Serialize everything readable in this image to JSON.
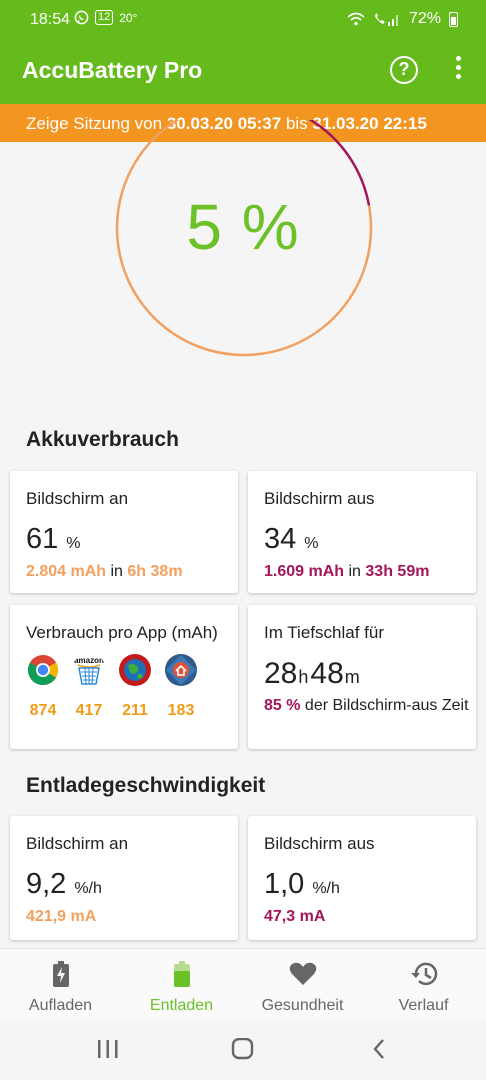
{
  "status": {
    "time": "18:54",
    "notif_badge": "12",
    "temperature": "20°",
    "battery_pct": "72%"
  },
  "appbar": {
    "title": "AccuBattery Pro",
    "help_icon": "help-circle-icon",
    "menu_icon": "more-vert-icon"
  },
  "session": {
    "prefix": "Zeige Sitzung von",
    "from": "30.03.20 05:37",
    "middle": "bis",
    "to": "31.03.20 22:15"
  },
  "gauge": {
    "label": "5 %",
    "value_pct": 5,
    "screen_on_share_pct": 61,
    "screen_off_share_pct": 34,
    "colors": {
      "on": "#f2a05f",
      "off": "#a4165b",
      "text": "#6cc128"
    }
  },
  "usage": {
    "title": "Akkuverbrauch",
    "screen_on": {
      "label": "Bildschirm an",
      "value": "61",
      "unit": "%",
      "mah": "2.804 mAh",
      "in": "in",
      "time": "6h 38m"
    },
    "screen_off": {
      "label": "Bildschirm aus",
      "value": "34",
      "unit": "%",
      "mah": "1.609 mAh",
      "in": "in",
      "time": "33h 59m"
    },
    "per_app": {
      "label": "Verbrauch pro App (mAh)",
      "apps": [
        {
          "icon": "chrome-icon",
          "value": "874"
        },
        {
          "icon": "amazon-icon",
          "value": "417",
          "icon_text": "amazon"
        },
        {
          "icon": "earth-icon",
          "value": "211"
        },
        {
          "icon": "home-launcher-icon",
          "value": "183"
        }
      ]
    },
    "deep_sleep": {
      "label": "Im Tiefschlaf für",
      "hours": "28",
      "h_unit": "h",
      "minutes": "48",
      "m_unit": "m",
      "pct": "85 %",
      "desc": "der Bildschirm-aus Zeit"
    }
  },
  "discharge": {
    "title": "Entladegeschwindigkeit",
    "screen_on": {
      "label": "Bildschirm an",
      "value": "9,2",
      "unit": "%/h",
      "ma": "421,9 mA"
    },
    "screen_off": {
      "label": "Bildschirm aus",
      "value": "1,0",
      "unit": "%/h",
      "ma": "47,3 mA"
    }
  },
  "nav": {
    "items": [
      {
        "label": "Aufladen",
        "icon": "battery-charging-icon"
      },
      {
        "label": "Entladen",
        "icon": "battery-icon",
        "active": true
      },
      {
        "label": "Gesundheit",
        "icon": "heart-icon"
      },
      {
        "label": "Verlauf",
        "icon": "history-icon"
      }
    ]
  },
  "system_nav": [
    "recents-icon",
    "home-icon",
    "back-icon"
  ]
}
